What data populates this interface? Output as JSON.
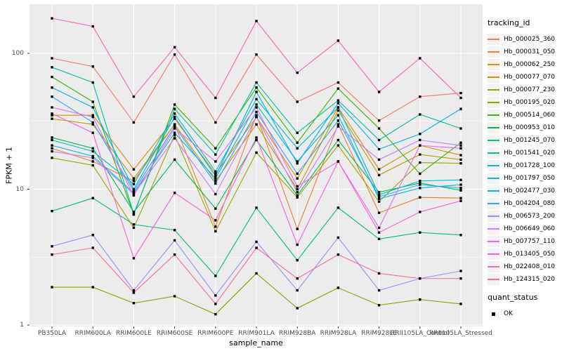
{
  "chart_data": {
    "type": "line",
    "title": "",
    "xlabel": "sample_name",
    "ylabel": "FPKM + 1",
    "y_scale": "log10",
    "y_ticks": [
      1,
      10,
      100
    ],
    "y_minor_ticks": [
      3.1623,
      31.623
    ],
    "ylim": [
      1,
      200
    ],
    "grid": "on",
    "legend_position": "right",
    "panel_bg": "#EBEBEB",
    "grid_color": "#FFFFFF",
    "tick_text_color": "#4D4D4D",
    "point_color": "#000000",
    "categories": [
      "PB350LA",
      "RRIM600LA",
      "RRIM600LE",
      "RRIM600SE",
      "RRIM600PE",
      "RRIM901LA",
      "RRIM928BA",
      "RRIM928LA",
      "RRIM928LE",
      "RRII105LA_Control",
      "RRII105LA_Stressed"
    ],
    "series": [
      {
        "name": "Hb_000025_360",
        "color": "#F8766D",
        "values": [
          92,
          80,
          31,
          98,
          31,
          98,
          44,
          61,
          32,
          48,
          51
        ]
      },
      {
        "name": "Hb_000031_050",
        "color": "#EA8331",
        "values": [
          20,
          16,
          11.5,
          30,
          5.3,
          35,
          5.1,
          30,
          6.7,
          8.7,
          8.6
        ]
      },
      {
        "name": "Hb_000062_250",
        "color": "#D89000",
        "values": [
          35,
          35,
          14,
          33,
          13,
          34,
          12,
          40,
          14,
          21,
          17.8
        ]
      },
      {
        "name": "Hb_000077_070",
        "color": "#C09B00",
        "values": [
          33,
          30,
          12,
          30,
          11.5,
          30,
          10,
          38,
          12.7,
          18,
          16.5
        ]
      },
      {
        "name": "Hb_000077_230",
        "color": "#A3A500",
        "values": [
          17,
          15,
          5.2,
          25,
          4.9,
          18.6,
          8.7,
          21,
          8.1,
          15.7,
          15.5
        ]
      },
      {
        "name": "Hb_000195_020",
        "color": "#7CAE00",
        "values": [
          1.9,
          1.9,
          1.45,
          1.63,
          1.2,
          2.4,
          1.33,
          1.88,
          1.4,
          1.54,
          1.43
        ]
      },
      {
        "name": "Hb_000514_060",
        "color": "#39B600",
        "values": [
          67,
          44,
          6.5,
          42,
          20,
          56,
          22,
          55,
          28,
          13,
          22
        ]
      },
      {
        "name": "Hb_000953_010",
        "color": "#00BB4E",
        "values": [
          24,
          20,
          6.8,
          16.5,
          7.2,
          23,
          9,
          23,
          9.5,
          11.1,
          9.8
        ]
      },
      {
        "name": "Hb_001245_070",
        "color": "#00BF7D",
        "values": [
          6.9,
          8.6,
          5.5,
          5.0,
          2.3,
          7.3,
          3.0,
          7.3,
          4.3,
          4.8,
          4.6
        ]
      },
      {
        "name": "Hb_001541_020",
        "color": "#00C1A3",
        "values": [
          79,
          61,
          6.6,
          39,
          18,
          61,
          26,
          45,
          23,
          35.5,
          28
        ]
      },
      {
        "name": "Hb_001728_100",
        "color": "#00BFC4",
        "values": [
          23,
          19,
          10.9,
          36,
          13.5,
          46,
          20,
          40,
          9.1,
          11.5,
          11.7
        ]
      },
      {
        "name": "Hb_001797_050",
        "color": "#00BAE0",
        "values": [
          21,
          17.5,
          9.4,
          26,
          12,
          42,
          16,
          35,
          8.5,
          10.2,
          10.8
        ]
      },
      {
        "name": "Hb_002477_030",
        "color": "#00B0F6",
        "values": [
          56,
          40,
          10,
          34,
          12.5,
          52,
          15.5,
          43,
          19.7,
          25.5,
          39
        ]
      },
      {
        "name": "Hb_004204_080",
        "color": "#35A2FF",
        "values": [
          48,
          31,
          9.7,
          29,
          11,
          37,
          13,
          32,
          8.8,
          10.8,
          10.2
        ]
      },
      {
        "name": "Hb_006573_200",
        "color": "#9590FF",
        "values": [
          3.8,
          4.6,
          1.8,
          4.2,
          1.65,
          4.1,
          1.8,
          4.4,
          1.8,
          2.2,
          2.5
        ]
      },
      {
        "name": "Hb_006649_060",
        "color": "#C77CFF",
        "values": [
          19,
          17,
          9.2,
          23.7,
          9.2,
          34,
          9.5,
          29,
          16.5,
          23,
          21
        ]
      },
      {
        "name": "Hb_007757_110",
        "color": "#E76BF3",
        "values": [
          40,
          34,
          9.0,
          28,
          16,
          40,
          10.5,
          16,
          5.2,
          21,
          20
        ]
      },
      {
        "name": "Hb_013405_050",
        "color": "#FA62DB",
        "values": [
          36,
          26,
          3.1,
          9.4,
          5.9,
          24,
          3.9,
          16,
          4.8,
          6.8,
          8.2
        ]
      },
      {
        "name": "Hb_022408_010",
        "color": "#FF62BC",
        "values": [
          181,
          158,
          48,
          111,
          47,
          173,
          72,
          124,
          52,
          92,
          47
        ]
      },
      {
        "name": "Hb_124315_020",
        "color": "#FF6A98",
        "values": [
          3.3,
          3.7,
          1.73,
          3.3,
          1.43,
          3.7,
          2.2,
          3.3,
          2.4,
          2.2,
          2.2
        ]
      }
    ]
  },
  "legend": {
    "tracking_title": "tracking_id",
    "quant_title": "quant_status",
    "quant_value": "OK"
  }
}
